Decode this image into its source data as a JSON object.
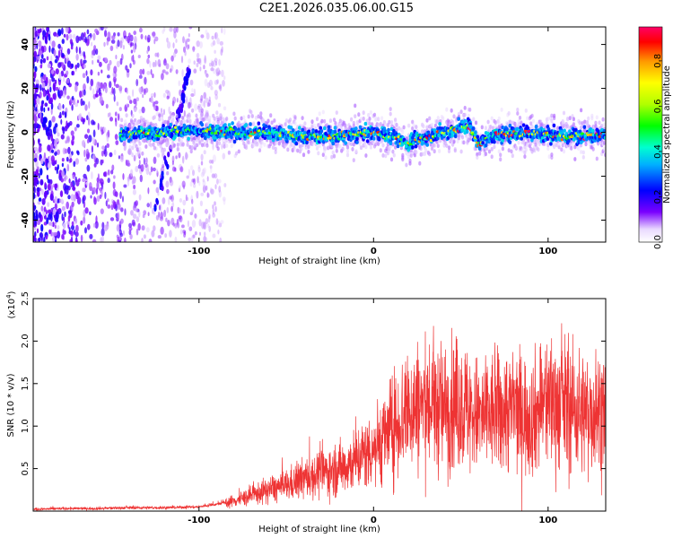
{
  "title": "C2E1.2026.035.06.00.G15",
  "chart_data": [
    {
      "type": "heatmap",
      "xlabel": "Height of straight line (km)",
      "ylabel": "Frequency (Hz)",
      "xlim": [
        -195,
        133
      ],
      "ylim": [
        -50,
        48
      ],
      "xticks": [
        -100,
        0,
        100
      ],
      "yticks": [
        -40,
        -20,
        0,
        20,
        40
      ],
      "colorbar": {
        "label": "Normalized spectral amplitude",
        "range": [
          0,
          0.95
        ],
        "ticks": [
          0.0,
          0.2,
          0.4,
          0.6,
          0.8
        ]
      },
      "ridge": {
        "description_points_km": [
          -140,
          -120,
          -100,
          -80,
          -60,
          -40,
          -20,
          0,
          15,
          20,
          40,
          55,
          60,
          70,
          90,
          110,
          130
        ],
        "center_freq_hz": [
          -1,
          0,
          1,
          0,
          0,
          -2,
          -2,
          0,
          -3,
          -5,
          0,
          3,
          -5,
          -1,
          0,
          -2,
          -1
        ]
      }
    },
    {
      "type": "line",
      "xlabel": "Height of straight line (km)",
      "ylabel": "SNR (10 * v/v)",
      "y_multiplier_label": "(x10",
      "y_multiplier_exp": "4",
      "xlim": [
        -195,
        133
      ],
      "ylim": [
        0,
        2.5
      ],
      "xticks": [
        -100,
        0,
        100
      ],
      "yticks": [
        0.5,
        1.0,
        1.5,
        2.0,
        2.5
      ],
      "series": [
        {
          "color": "#ee3333",
          "x": [
            -195,
            -180,
            -160,
            -140,
            -120,
            -100,
            -90,
            -80,
            -70,
            -60,
            -50,
            -40,
            -30,
            -20,
            -10,
            0,
            10,
            20,
            30,
            40,
            50,
            60,
            70,
            80,
            90,
            100,
            110,
            120,
            133
          ],
          "y": [
            0.02,
            0.03,
            0.03,
            0.04,
            0.04,
            0.05,
            0.08,
            0.12,
            0.18,
            0.25,
            0.3,
            0.38,
            0.45,
            0.5,
            0.6,
            0.75,
            0.95,
            1.2,
            1.25,
            1.2,
            1.25,
            1.1,
            1.15,
            1.2,
            1.1,
            1.3,
            1.25,
            1.15,
            1.2
          ]
        }
      ]
    }
  ]
}
